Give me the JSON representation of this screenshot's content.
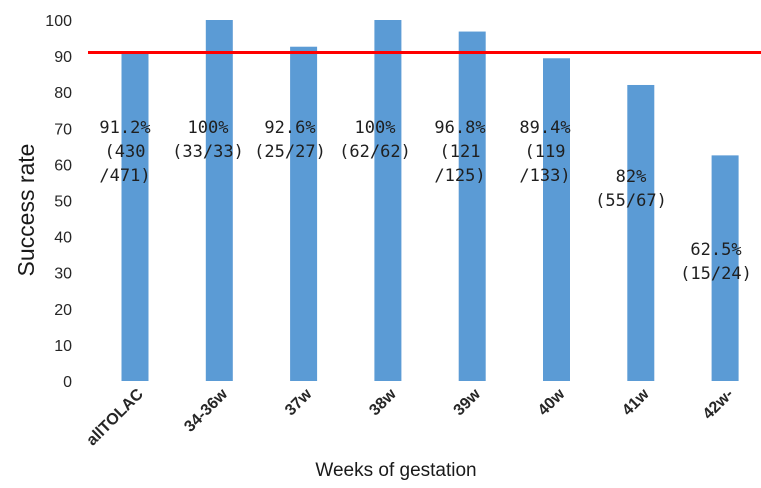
{
  "chart_data": {
    "type": "bar",
    "title": "",
    "xlabel": "Weeks of gestation",
    "ylabel": "Success rate",
    "ylim": [
      0,
      100
    ],
    "yticks": [
      0,
      10,
      20,
      30,
      40,
      50,
      60,
      70,
      80,
      90,
      100
    ],
    "grid": false,
    "legend": "none",
    "categories": [
      "allTOLAC",
      "34-36w",
      "37w",
      "38w",
      "39w",
      "40w",
      "41w",
      "42w-"
    ],
    "values": [
      91.2,
      100,
      92.6,
      100,
      96.8,
      89.4,
      82,
      62.5
    ],
    "data_labels": [
      [
        "91.2%",
        "(430",
        "/471)"
      ],
      [
        "100%",
        "(33/33)"
      ],
      [
        "92.6%",
        "(25/27)"
      ],
      [
        "100%",
        "(62/62)"
      ],
      [
        "96.8%",
        "(121",
        "/125)"
      ],
      [
        "89.4%",
        "(119",
        "/133)"
      ],
      [
        "82%",
        "(55/67)"
      ],
      [
        "62.5%",
        "(15/24)"
      ]
    ],
    "reference_line": {
      "y": 91,
      "color": "#ff0000"
    },
    "bar_color": "#5b9bd5"
  }
}
